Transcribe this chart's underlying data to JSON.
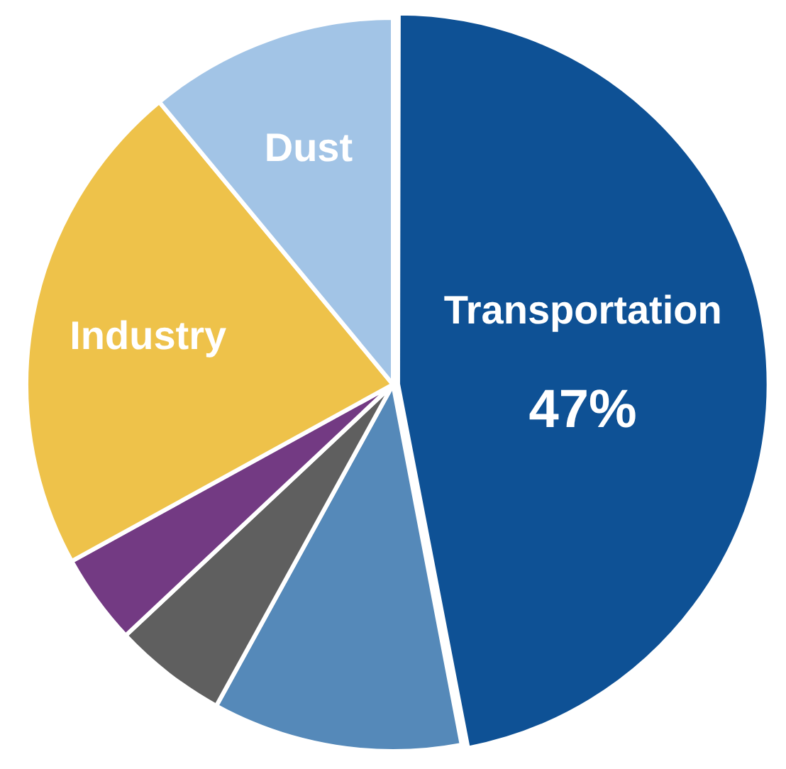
{
  "chart_data": {
    "type": "pie",
    "categories": [
      "Transportation",
      null,
      null,
      null,
      "Industry",
      "Dust"
    ],
    "values": [
      47,
      11,
      5,
      4,
      22,
      11
    ],
    "value_labels": [
      "47%",
      null,
      null,
      null,
      null,
      null
    ],
    "colors": [
      "#0e5195",
      "#5589b9",
      "#5f5f5f",
      "#733a83",
      "#eec24a",
      "#a2c4e6"
    ],
    "legend": false
  }
}
